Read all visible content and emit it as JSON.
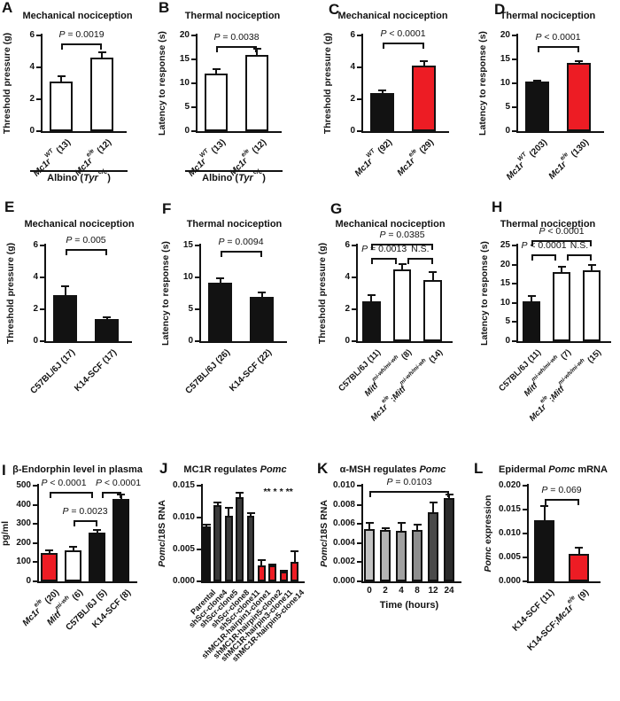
{
  "palette": {
    "white": "#ffffff",
    "black": "#121212",
    "red": "#ed1c24",
    "gray": "#3a3a3a",
    "axis": "#121212"
  },
  "chart_data": [
    {
      "panel": "A",
      "type": "bar",
      "title": "Mechanical nociception",
      "ylabel": "Threshold pressure (g)",
      "ylim": [
        0,
        6
      ],
      "yticks": [
        "0",
        "2",
        "4",
        "6"
      ],
      "categories": [
        "*Mc1r*^*WT*^ (13)",
        "*Mc1r*^*e/e*^ (12)"
      ],
      "values": [
        3.1,
        4.6
      ],
      "errors": [
        0.35,
        0.35
      ],
      "colors": [
        "white",
        "white"
      ],
      "significance": [
        {
          "from": 0,
          "to": 1,
          "y": 5.5,
          "label": "*P* = 0.0019"
        }
      ],
      "group_label": "Albino (*Tyr*^c/c^)"
    },
    {
      "panel": "B",
      "type": "bar",
      "title": "Thermal nociception",
      "ylabel": "Latency to response (s)",
      "ylim": [
        0,
        20
      ],
      "yticks": [
        "0",
        "5",
        "10",
        "15",
        "20"
      ],
      "categories": [
        "*Mc1r*^*WT*^ (13)",
        "*Mc1r*^*e/e*^ (12)"
      ],
      "values": [
        12,
        16
      ],
      "errors": [
        1.0,
        1.2
      ],
      "colors": [
        "white",
        "white"
      ],
      "significance": [
        {
          "from": 0,
          "to": 1,
          "y": 17.8,
          "label": "*P* = 0.0038"
        }
      ],
      "group_label": "Albino (*Tyr*^c/c^)"
    },
    {
      "panel": "C",
      "type": "bar",
      "title": "Mechanical nociception",
      "ylabel": "Threshold pressure (g)",
      "ylim": [
        0,
        6
      ],
      "yticks": [
        "0",
        "2",
        "4",
        "6"
      ],
      "categories": [
        "*Mc1r*^*WT*^ (92)",
        "*Mc1r*^*e/e*^ (29)"
      ],
      "values": [
        2.4,
        4.1
      ],
      "errors": [
        0.15,
        0.3
      ],
      "colors": [
        "black",
        "red"
      ],
      "significance": [
        {
          "from": 0,
          "to": 1,
          "y": 5.55,
          "label": "*P* < 0.0001"
        }
      ]
    },
    {
      "panel": "D",
      "type": "bar",
      "title": "Thermal nociception",
      "ylabel": "Latency to response (s)",
      "ylim": [
        0,
        20
      ],
      "yticks": [
        "0",
        "5",
        "10",
        "15",
        "20"
      ],
      "categories": [
        "*Mc1r*^*WT*^ (203)",
        "*Mc1r*^*e/e*^ (130)"
      ],
      "values": [
        10.3,
        14.2
      ],
      "errors": [
        0.3,
        0.4
      ],
      "colors": [
        "black",
        "red"
      ],
      "significance": [
        {
          "from": 0,
          "to": 1,
          "y": 17.8,
          "label": "*P* < 0.0001"
        }
      ]
    },
    {
      "panel": "E",
      "type": "bar",
      "title": "Mechanical nociception",
      "ylabel": "Threshold pressure (g)",
      "ylim": [
        0,
        6
      ],
      "yticks": [
        "0",
        "2",
        "4",
        "6"
      ],
      "categories": [
        "C57BL/6J (17)",
        "K14-SCF (17)"
      ],
      "values": [
        2.9,
        1.4
      ],
      "errors": [
        0.55,
        0.08
      ],
      "colors": [
        "black",
        "black"
      ],
      "significance": [
        {
          "from": 0,
          "to": 1,
          "y": 5.8,
          "label": "*P* = 0.005"
        }
      ]
    },
    {
      "panel": "F",
      "type": "bar",
      "title": "Thermal nociception",
      "ylabel": "Latency to response (s)",
      "ylim": [
        0,
        15
      ],
      "yticks": [
        "0",
        "5",
        "10",
        "15"
      ],
      "categories": [
        "C57BL/6J (26)",
        "K14-SCF (22)"
      ],
      "values": [
        9.2,
        6.9
      ],
      "errors": [
        0.7,
        0.7
      ],
      "colors": [
        "black",
        "black"
      ],
      "significance": [
        {
          "from": 0,
          "to": 1,
          "y": 14.2,
          "label": "*P* = 0.0094"
        }
      ]
    },
    {
      "panel": "G",
      "type": "bar",
      "title": "Mechanical nociception",
      "ylabel": "Threshold pressure (g)",
      "ylim": [
        0,
        6
      ],
      "yticks": [
        "0",
        "2",
        "4",
        "6"
      ],
      "categories": [
        "C57BL/6J (11)",
        "*Mitf*^*mi-wh/mi-wh*^ (8)",
        "*Mc1r*^*e/e*^;*Mitf*^*mi-wh/mi-wh*^ (14)"
      ],
      "values": [
        2.5,
        4.5,
        3.85
      ],
      "errors": [
        0.4,
        0.35,
        0.5
      ],
      "colors": [
        "black",
        "white",
        "white"
      ],
      "significance": [
        {
          "from": 0,
          "to": 2,
          "y": 6.1,
          "label": "*P* = 0.0385"
        },
        {
          "from": 0,
          "to": 1,
          "toOff": -6,
          "y": 5.2,
          "label": "*P* = 0.0013"
        },
        {
          "from": 1,
          "to": 2,
          "fromOff": 6,
          "y": 5.2,
          "label": "N.S."
        }
      ]
    },
    {
      "panel": "H",
      "type": "bar",
      "title": "Thermal nociception",
      "ylabel": "Latency to response (s)",
      "ylim": [
        0,
        25
      ],
      "yticks": [
        "0",
        "5",
        "10",
        "15",
        "20",
        "25"
      ],
      "categories": [
        "C57BL/6J (11)",
        "*Mitf*^*mi-wh/mi-wh*^ (7)",
        "*Mc1r*^*e/e*^;*Mitf*^*mi-wh/mi-wh*^ (15)"
      ],
      "values": [
        10.5,
        18,
        18.5
      ],
      "errors": [
        1.2,
        1.5,
        1.5
      ],
      "colors": [
        "black",
        "white",
        "white"
      ],
      "significance": [
        {
          "from": 0,
          "to": 2,
          "y": 26.3,
          "label": "*P* < 0.0001"
        },
        {
          "from": 0,
          "to": 1,
          "toOff": -6,
          "y": 22.8,
          "label": "*P* < 0.0001"
        },
        {
          "from": 1,
          "to": 2,
          "fromOff": 6,
          "y": 22.8,
          "label": "N.S."
        }
      ]
    },
    {
      "panel": "I",
      "type": "bar",
      "title": "β-Endorphin level in plasma",
      "ylabel": "pg/ml",
      "ylim": [
        0,
        500
      ],
      "yticks": [
        "0",
        "100",
        "200",
        "300",
        "400",
        "500"
      ],
      "categories": [
        "*Mc1r*^*e/e*^ (20)",
        "*Mitf*^*mi-wh*^ (6)",
        "C57BL/6J (5)",
        "K14-SCF (8)"
      ],
      "values": [
        150,
        160,
        255,
        430
      ],
      "errors": [
        10,
        22,
        15,
        22
      ],
      "colors": [
        "red",
        "white",
        "black",
        "black"
      ],
      "significance": [
        {
          "from": 0,
          "to": 2,
          "toOff": -5,
          "y": 468,
          "tdx": -8,
          "label": "*P* < 0.0001"
        },
        {
          "from": 2,
          "to": 3,
          "fromOff": 5,
          "y": 468,
          "tdx": 8,
          "label": "*P* < 0.0001"
        },
        {
          "from": 1,
          "to": 2,
          "y": 318,
          "label": "*P* = 0.0023"
        }
      ]
    },
    {
      "panel": "J",
      "type": "bar",
      "title": "MC1R regulates *Pomc*",
      "ylabel": "*Pomc*/18S RNA",
      "ylim": [
        0,
        0.015
      ],
      "yticks": [
        "0.000",
        "0.005",
        "0.010",
        "0.015"
      ],
      "categories": [
        "Parental",
        "shScr-clone4",
        "shScr-clone5",
        "shScr-clone8",
        "shScr-clone11",
        "shMC1R-hairpin1-clone1",
        "shMC1R-hairpin5-clone2",
        "shMC1R-hairpin3-clone11",
        "shMC1R-hairpin5-clone14"
      ],
      "values": [
        0.0086,
        0.012,
        0.0103,
        0.0132,
        0.0103,
        0.0025,
        0.0025,
        0.0015,
        0.0031
      ],
      "errors": [
        0.0003,
        0.0004,
        0.0012,
        0.0007,
        0.0004,
        0.0009,
        0.0002,
        0.0002,
        0.0016
      ],
      "colors": [
        "black",
        "gray",
        "gray",
        "gray",
        "gray",
        "red",
        "red",
        "red",
        "red"
      ],
      "significance": [
        {
          "from": 5,
          "to": 8,
          "y": 0.0136,
          "line": false,
          "label": "*** *** *** ***"
        }
      ]
    },
    {
      "panel": "K",
      "type": "bar",
      "title": "α-MSH regulates *Pomc*",
      "ylabel": "*Pomc*/18S RNA",
      "xlabel": "Time (hours)",
      "ylim": [
        0,
        0.01
      ],
      "yticks": [
        "0.000",
        "0.002",
        "0.004",
        "0.006",
        "0.008",
        "0.010"
      ],
      "categories": [
        "0",
        "2",
        "4",
        "8",
        "12",
        "24"
      ],
      "values": [
        0.0055,
        0.0054,
        0.0053,
        0.0054,
        0.0072,
        0.0087
      ],
      "errors": [
        0.0006,
        0.0002,
        0.0008,
        0.0005,
        0.001,
        0.0004
      ],
      "colors": [
        "#c2c2c2",
        "#b4b4b4",
        "#a0a0a0",
        "#8e8e8e",
        "#4a4a4a",
        "#2b2b2b"
      ],
      "significance": [
        {
          "from": 0,
          "to": 5,
          "y": 0.0094,
          "label": "*P* = 0.0103"
        }
      ]
    },
    {
      "panel": "L",
      "type": "bar",
      "title": "Epidermal *Pomc* mRNA",
      "ylabel": "*Pomc* expression",
      "ylim": [
        0,
        0.02
      ],
      "yticks": [
        "0.000",
        "0.005",
        "0.010",
        "0.015",
        "0.020"
      ],
      "categories": [
        "K14-SCF (11)",
        "K14-SCF;*Mc1r*^*e/e*^ (9)"
      ],
      "values": [
        0.0127,
        0.0058
      ],
      "errors": [
        0.003,
        0.0013
      ],
      "colors": [
        "black",
        "red"
      ],
      "significance": [
        {
          "from": 0,
          "to": 1,
          "y": 0.0173,
          "label": "*P* = 0.069"
        }
      ]
    }
  ]
}
